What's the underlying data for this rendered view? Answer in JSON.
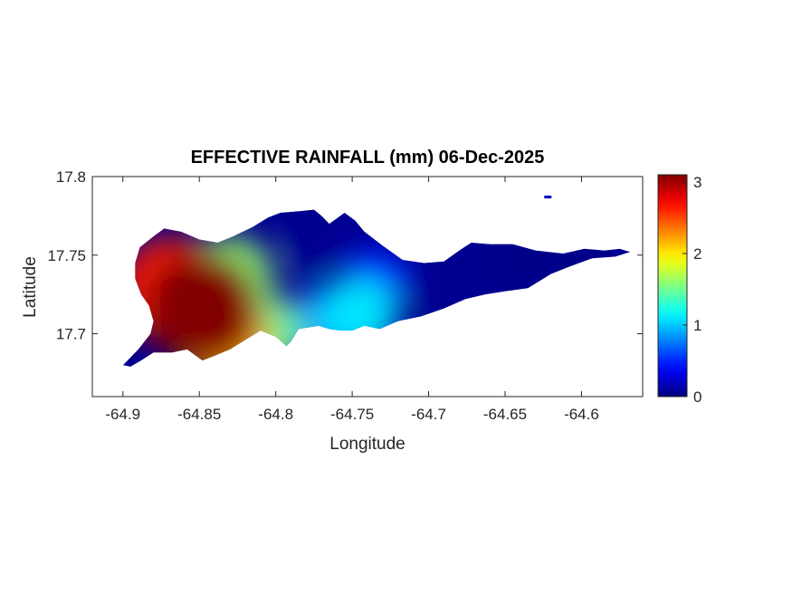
{
  "chart_data": {
    "type": "heatmap",
    "title": "EFFECTIVE RAINFALL (mm) 06-Dec-2025",
    "xlabel": "Longitude",
    "ylabel": "Latitude",
    "xlim": [
      -64.92,
      -64.56
    ],
    "ylim": [
      17.66,
      17.8
    ],
    "xticks": [
      -64.9,
      -64.85,
      -64.8,
      -64.75,
      -64.7,
      -64.65,
      -64.6
    ],
    "xtick_labels": [
      "-64.9",
      "-64.85",
      "-64.8",
      "-64.75",
      "-64.7",
      "-64.65",
      "-64.6"
    ],
    "yticks": [
      17.7,
      17.75,
      17.8
    ],
    "ytick_labels": [
      "17.7",
      "17.75",
      "17.8"
    ],
    "colorbar": {
      "min": 0,
      "max": 3.1,
      "ticks": [
        0,
        1,
        2,
        3
      ],
      "tick_labels": [
        "0",
        "1",
        "2",
        "3"
      ],
      "colormap": "jet"
    },
    "hotspots": [
      {
        "lon": -64.848,
        "lat": 17.716,
        "value": 3.1
      },
      {
        "lon": -64.868,
        "lat": 17.728,
        "value": 2.6
      },
      {
        "lon": -64.835,
        "lat": 17.7,
        "value": 2.2
      },
      {
        "lon": -64.83,
        "lat": 17.735,
        "value": 1.6
      },
      {
        "lon": -64.81,
        "lat": 17.7,
        "value": 1.5
      },
      {
        "lon": -64.745,
        "lat": 17.712,
        "value": 1.1
      },
      {
        "lon": -64.765,
        "lat": 17.707,
        "value": 0.9
      },
      {
        "lon": -64.735,
        "lat": 17.735,
        "value": 0.5
      },
      {
        "lon": -64.775,
        "lat": 17.755,
        "value": 0.05
      },
      {
        "lon": -64.7,
        "lat": 17.735,
        "value": 0.05
      },
      {
        "lon": -64.64,
        "lat": 17.745,
        "value": 0.02
      },
      {
        "lon": -64.6,
        "lat": 17.745,
        "value": 0.02
      }
    ],
    "base_value": 0.05,
    "coastline": [
      [
        -64.9,
        17.68
      ],
      [
        -64.89,
        17.69
      ],
      [
        -64.882,
        17.7
      ],
      [
        -64.88,
        17.708
      ],
      [
        -64.883,
        17.718
      ],
      [
        -64.888,
        17.725
      ],
      [
        -64.892,
        17.735
      ],
      [
        -64.892,
        17.745
      ],
      [
        -64.889,
        17.755
      ],
      [
        -64.88,
        17.762
      ],
      [
        -64.873,
        17.767
      ],
      [
        -64.862,
        17.765
      ],
      [
        -64.85,
        17.76
      ],
      [
        -64.838,
        17.758
      ],
      [
        -64.828,
        17.762
      ],
      [
        -64.815,
        17.768
      ],
      [
        -64.805,
        17.774
      ],
      [
        -64.797,
        17.777
      ],
      [
        -64.785,
        17.778
      ],
      [
        -64.775,
        17.779
      ],
      [
        -64.77,
        17.775
      ],
      [
        -64.765,
        17.77
      ],
      [
        -64.755,
        17.777
      ],
      [
        -64.748,
        17.772
      ],
      [
        -64.742,
        17.765
      ],
      [
        -64.73,
        17.756
      ],
      [
        -64.717,
        17.747
      ],
      [
        -64.703,
        17.745
      ],
      [
        -64.69,
        17.746
      ],
      [
        -64.68,
        17.753
      ],
      [
        -64.672,
        17.758
      ],
      [
        -64.66,
        17.757
      ],
      [
        -64.645,
        17.757
      ],
      [
        -64.63,
        17.753
      ],
      [
        -64.612,
        17.751
      ],
      [
        -64.598,
        17.754
      ],
      [
        -64.585,
        17.753
      ],
      [
        -64.575,
        17.754
      ],
      [
        -64.568,
        17.752
      ],
      [
        -64.578,
        17.749
      ],
      [
        -64.593,
        17.748
      ],
      [
        -64.607,
        17.743
      ],
      [
        -64.62,
        17.738
      ],
      [
        -64.635,
        17.729
      ],
      [
        -64.65,
        17.727
      ],
      [
        -64.663,
        17.725
      ],
      [
        -64.676,
        17.722
      ],
      [
        -64.69,
        17.716
      ],
      [
        -64.705,
        17.711
      ],
      [
        -64.72,
        17.708
      ],
      [
        -64.732,
        17.703
      ],
      [
        -64.742,
        17.705
      ],
      [
        -64.75,
        17.702
      ],
      [
        -64.758,
        17.702
      ],
      [
        -64.765,
        17.703
      ],
      [
        -64.772,
        17.705
      ],
      [
        -64.785,
        17.703
      ],
      [
        -64.79,
        17.695
      ],
      [
        -64.793,
        17.692
      ],
      [
        -64.8,
        17.698
      ],
      [
        -64.81,
        17.702
      ],
      [
        -64.82,
        17.696
      ],
      [
        -64.83,
        17.69
      ],
      [
        -64.84,
        17.686
      ],
      [
        -64.848,
        17.683
      ],
      [
        -64.858,
        17.69
      ],
      [
        -64.868,
        17.688
      ],
      [
        -64.88,
        17.688
      ],
      [
        -64.888,
        17.683
      ],
      [
        -64.895,
        17.679
      ]
    ],
    "islet": {
      "lon": -64.622,
      "lat": 17.787,
      "value": 0.2
    }
  }
}
